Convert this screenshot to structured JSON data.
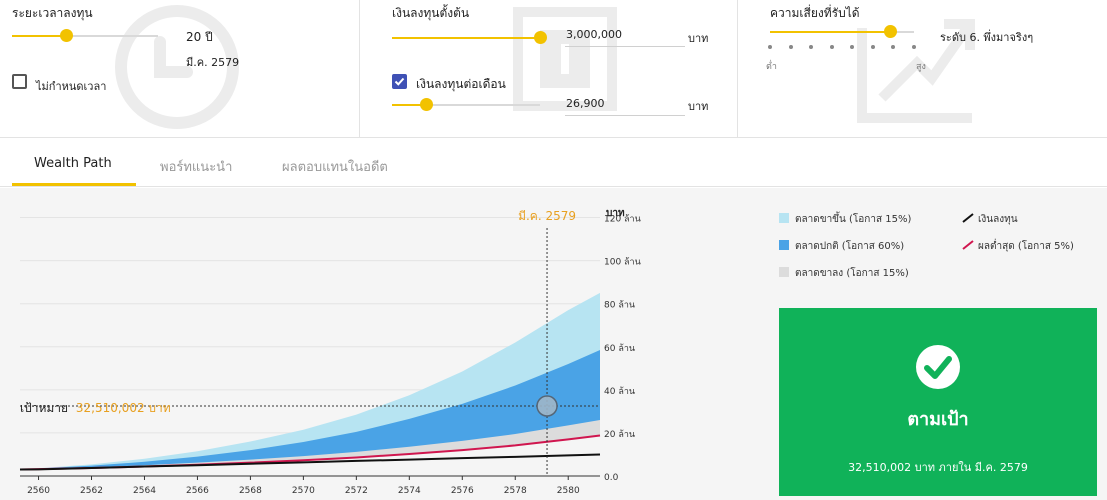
{
  "panels": {
    "period": {
      "title": "ระยะเวลาลงทุน",
      "value": "20 ปี",
      "date": "มี.ค. 2579",
      "checkbox_label": "ไม่กำหนดเวลา",
      "checkbox_checked": false,
      "slider_fraction": 0.37
    },
    "initial": {
      "title": "เงินลงทุนตั้งต้น",
      "value": "3,000,000",
      "unit": "บาท",
      "slider_fraction": 1.0,
      "monthly_label": "เงินลงทุนต่อเดือน",
      "monthly_checked": true,
      "monthly_value": "26,900",
      "monthly_unit": "บาท",
      "monthly_slider_fraction": 0.23
    },
    "risk": {
      "title": "ความเสี่ยงที่รับได้",
      "level_text": "ระดับ 6. พึ่งมาจริงๆ",
      "low_label": "ต่ำ",
      "high_label": "สูง",
      "slider_fraction": 0.83,
      "steps": 8
    }
  },
  "tabs": [
    {
      "label": "Wealth Path",
      "active": true
    },
    {
      "label": "พอร์ทแนะนำ",
      "active": false
    },
    {
      "label": "ผลตอบแทนในอดีต",
      "active": false
    }
  ],
  "legend": [
    {
      "label": "ตลาดขาขึ้น (โอกาส 15%)",
      "color": "#b7e4f2",
      "kind": "swatch"
    },
    {
      "label": "ตลาดปกติ (โอกาส 60%)",
      "color": "#4aa3e6",
      "kind": "swatch"
    },
    {
      "label": "ตลาดขาลง (โอกาส 15%)",
      "color": "#dcdcdc",
      "kind": "swatch"
    },
    {
      "label": "เงินลงทุน",
      "color": "#111111",
      "kind": "line"
    },
    {
      "label": "ผลต่ำสุด (โอกาส 5%)",
      "color": "#d0164f",
      "kind": "line"
    }
  ],
  "goal": {
    "label": "เป้าหมาย",
    "value": "32,510,002 บาท",
    "amount": 32.51
  },
  "marker": {
    "label": "มี.ค. 2579",
    "year": 2579.2
  },
  "chart_data": {
    "type": "area",
    "ylabel": "บาท",
    "y_ticks": [
      "0.0",
      "20 ล้าน",
      "40 ล้าน",
      "60 ล้าน",
      "80 ล้าน",
      "100 ล้าน",
      "120 ล้าน"
    ],
    "y_tick_values": [
      0,
      20,
      40,
      60,
      80,
      100,
      120
    ],
    "ylim": [
      0,
      130
    ],
    "x_ticks": [
      "2560",
      "2562",
      "2564",
      "2566",
      "2568",
      "2570",
      "2572",
      "2574",
      "2576",
      "2578",
      "2580"
    ],
    "xlim": [
      2559.3,
      2581.2
    ],
    "x": [
      2559.3,
      2560,
      2562,
      2564,
      2566,
      2568,
      2570,
      2572,
      2574,
      2576,
      2578,
      2580,
      2581.2
    ],
    "series": [
      {
        "name": "ตลาดขาขึ้น (โอกาส 15%)",
        "values": [
          3,
          3.6,
          5.4,
          8.0,
          11.5,
          16.0,
          21.5,
          28.5,
          37.5,
          48.5,
          62,
          77,
          85
        ]
      },
      {
        "name": "ตลาดปกติ (โอกาส 60%)",
        "values": [
          3,
          3.5,
          4.8,
          6.6,
          9.0,
          12.0,
          15.8,
          20.5,
          26.5,
          33.5,
          42,
          52,
          58.5
        ]
      },
      {
        "name": "ตลาดขาลง (โอกาส 15%)",
        "values": [
          3,
          3.3,
          4.0,
          5.0,
          6.2,
          7.6,
          9.2,
          11.2,
          13.6,
          16.3,
          19.5,
          23.5,
          26
        ]
      },
      {
        "name": "ผลต่ำสุด (โอกาส 5%)",
        "values": [
          3,
          3.2,
          3.7,
          4.4,
          5.2,
          6.2,
          7.3,
          8.6,
          10.2,
          12.0,
          14.2,
          17.0,
          18.8
        ]
      },
      {
        "name": "เงินลงทุน",
        "values": [
          3,
          3.1,
          3.7,
          4.4,
          5.0,
          5.7,
          6.3,
          7.0,
          7.6,
          8.3,
          8.9,
          9.6,
          10.0
        ]
      }
    ]
  },
  "result_card": {
    "title": "ตามเป้า",
    "subtitle": "32,510,002 บาท ภายใน มี.ค. 2579",
    "color": "#10b259"
  }
}
